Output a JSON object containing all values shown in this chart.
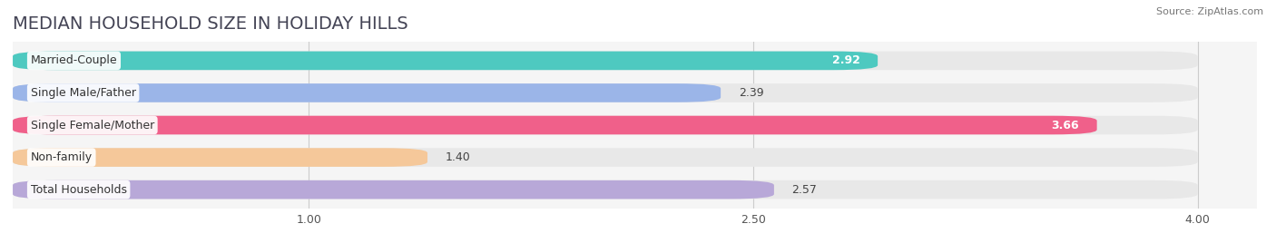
{
  "title": "MEDIAN HOUSEHOLD SIZE IN HOLIDAY HILLS",
  "source": "Source: ZipAtlas.com",
  "categories": [
    "Married-Couple",
    "Single Male/Father",
    "Single Female/Mother",
    "Non-family",
    "Total Households"
  ],
  "values": [
    2.92,
    2.39,
    3.66,
    1.4,
    2.57
  ],
  "bar_colors": [
    "#4ec9c0",
    "#9bb5e8",
    "#f0608a",
    "#f5c89a",
    "#b8a8d8"
  ],
  "bar_bg_color": "#e8e8e8",
  "value_inside": [
    true,
    false,
    true,
    false,
    false
  ],
  "xlim": [
    0.0,
    4.2
  ],
  "data_xlim": [
    0.0,
    4.0
  ],
  "xticks": [
    1.0,
    2.5,
    4.0
  ],
  "background_color": "#ffffff",
  "plot_bg_color": "#f5f5f5",
  "title_fontsize": 14,
  "bar_height": 0.58
}
